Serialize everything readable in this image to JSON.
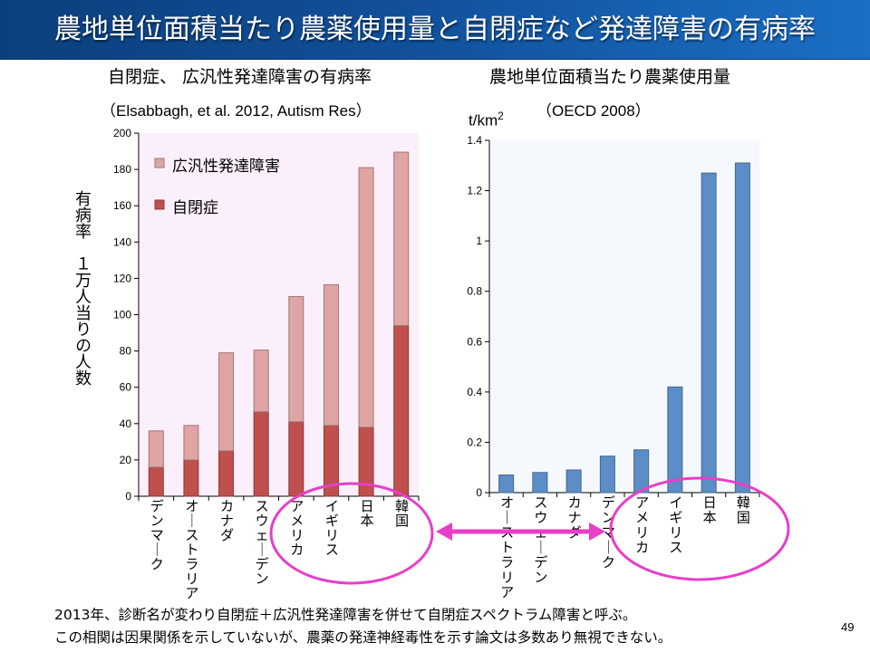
{
  "slide": {
    "title": "農地単位面積当たり農薬使用量と自閉症など発達障害の有病率",
    "page_number": "49",
    "footnotes": [
      "2013年、診断名が変わり自閉症＋広汎性発達障害を併せて自閉症スペクトラム障害と呼ぶ。",
      "この相関は因果関係を示していないが、農薬の発達神経毒性を示す論文は多数あり無視できない。"
    ],
    "colors": {
      "title_bar_left": "#0c3f7d",
      "title_bar_right": "#1b6fc6",
      "highlight": "#e83ec8"
    }
  },
  "chart_data": [
    {
      "type": "bar",
      "stacked": true,
      "title": "自閉症、 広汎性発達障害の有病率",
      "subtitle": "（Elsabbagh, et al. 2012, Autism Res）",
      "xlabel": "",
      "ylabel": "有病率　１万人当りの人数",
      "ylim": [
        0,
        200
      ],
      "yticks": [
        0,
        20,
        40,
        60,
        80,
        100,
        120,
        140,
        160,
        180,
        200
      ],
      "grid": false,
      "legend_position": "top-left",
      "categories": [
        "デンマーク",
        "オーストラリア",
        "カナダ",
        "スウェーデン",
        "アメリカ",
        "イギリス",
        "日本",
        "韓国"
      ],
      "series": [
        {
          "name": "自閉症",
          "color": "#c0504d",
          "values": [
            16,
            20,
            25,
            46.5,
            41,
            39,
            38,
            94
          ]
        },
        {
          "name": "広汎性発達障害",
          "color": "#dea5a4",
          "values": [
            20,
            19,
            54,
            34,
            69,
            77.5,
            143,
            95.5
          ]
        }
      ],
      "totals": [
        36,
        39,
        79,
        80.5,
        110,
        116.5,
        181,
        189.5
      ],
      "plot_background": "#fbeffb",
      "highlighted_categories": [
        "アメリカ",
        "イギリス",
        "日本",
        "韓国"
      ]
    },
    {
      "type": "bar",
      "title": "農地単位面積当たり農薬使用量",
      "subtitle": "（OECD 2008）",
      "xlabel": "",
      "ylabel": "t/km",
      "ylabel_superscript": "2",
      "ylim": [
        0,
        1.4
      ],
      "yticks": [
        0,
        0.2,
        0.4,
        0.6,
        0.8,
        1,
        1.2,
        1.4
      ],
      "ytick_labels": [
        "0",
        "0.2",
        "0.4",
        "0.6",
        "0.8",
        "1",
        "1.2",
        "1.4"
      ],
      "grid": false,
      "categories": [
        "オーストラリア",
        "スウェーデン",
        "カナダ",
        "デンマーク",
        "アメリカ",
        "イギリス",
        "日本",
        "韓国"
      ],
      "series": [
        {
          "name": "農薬使用量",
          "color": "#5b8ec7",
          "values": [
            0.07,
            0.08,
            0.09,
            0.145,
            0.17,
            0.42,
            1.27,
            1.31
          ]
        }
      ],
      "plot_background": "#f5f9fd",
      "highlighted_categories": [
        "アメリカ",
        "イギリス",
        "日本",
        "韓国"
      ]
    }
  ]
}
